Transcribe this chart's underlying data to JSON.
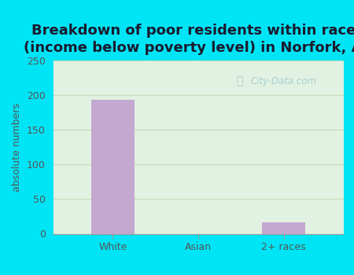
{
  "title": "Breakdown of poor residents within races\n(income below poverty level) in Norfork, AR",
  "categories": [
    "White",
    "Asian",
    "2+ races"
  ],
  "values": [
    193,
    0,
    17
  ],
  "bar_color": "#c4a8d0",
  "ylabel": "absolute numbers",
  "ylim": [
    0,
    250
  ],
  "yticks": [
    0,
    50,
    100,
    150,
    200,
    250
  ],
  "background_outer": "#00e5f5",
  "background_inner": "#e2f2e2",
  "grid_color": "#c8dfc0",
  "title_fontsize": 13,
  "axis_label_fontsize": 9,
  "tick_fontsize": 9,
  "watermark": "City-Data.com",
  "watermark_color": "#a0c8d0",
  "title_color": "#1a1a2e",
  "tick_color": "#555555"
}
